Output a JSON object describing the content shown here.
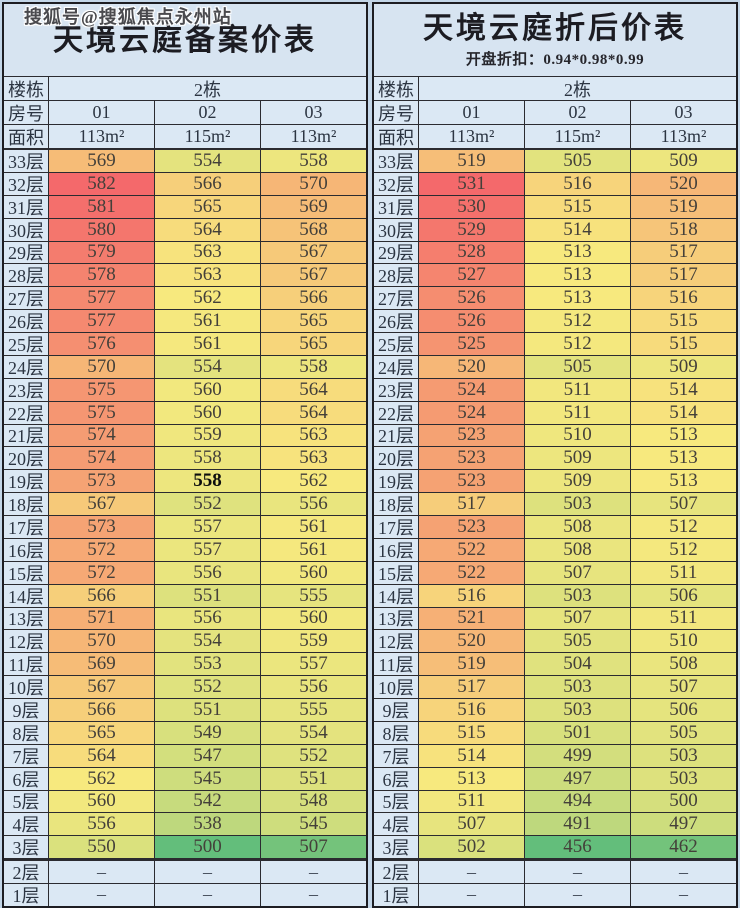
{
  "watermark": "搜狐号@搜狐焦点永州站",
  "heatmap_palette": {
    "low_green": "#63BE7B",
    "mid_yellow": "#F7E97E",
    "high_red": "#F4696B",
    "note": "3-color scale per table: green=min, yellow=median, red=max"
  },
  "chart_data": [
    {
      "type": "heatmap",
      "title": "天境云庭备案价表",
      "subtitle": "",
      "header": {
        "building_label": "楼栋",
        "building": "2栋",
        "room_label": "房号",
        "rooms": [
          "01",
          "02",
          "03"
        ],
        "area_label": "面积",
        "areas": [
          "113m²",
          "115m²",
          "113m²"
        ]
      },
      "floor_suffix": "层",
      "empty_marker": "–",
      "bold_cells": [
        {
          "floor": 19,
          "col": 1
        }
      ],
      "floors": [
        33,
        32,
        31,
        30,
        29,
        28,
        27,
        26,
        25,
        24,
        23,
        22,
        21,
        20,
        19,
        18,
        17,
        16,
        15,
        14,
        13,
        12,
        11,
        10,
        9,
        8,
        7,
        6,
        5,
        4,
        3,
        2,
        1
      ],
      "values": [
        [
          569,
          554,
          558
        ],
        [
          582,
          566,
          570
        ],
        [
          581,
          565,
          569
        ],
        [
          580,
          564,
          568
        ],
        [
          579,
          563,
          567
        ],
        [
          578,
          563,
          567
        ],
        [
          577,
          562,
          566
        ],
        [
          577,
          561,
          565
        ],
        [
          576,
          561,
          565
        ],
        [
          570,
          554,
          558
        ],
        [
          575,
          560,
          564
        ],
        [
          575,
          560,
          564
        ],
        [
          574,
          559,
          563
        ],
        [
          574,
          558,
          563
        ],
        [
          573,
          558,
          562
        ],
        [
          567,
          552,
          556
        ],
        [
          573,
          557,
          561
        ],
        [
          572,
          557,
          561
        ],
        [
          572,
          556,
          560
        ],
        [
          566,
          551,
          555
        ],
        [
          571,
          556,
          560
        ],
        [
          570,
          554,
          559
        ],
        [
          569,
          553,
          557
        ],
        [
          567,
          552,
          556
        ],
        [
          566,
          551,
          555
        ],
        [
          565,
          549,
          554
        ],
        [
          564,
          547,
          552
        ],
        [
          562,
          545,
          551
        ],
        [
          560,
          542,
          548
        ],
        [
          556,
          538,
          545
        ],
        [
          550,
          500,
          507
        ],
        [
          null,
          null,
          null
        ],
        [
          null,
          null,
          null
        ]
      ]
    },
    {
      "type": "heatmap",
      "title": "天境云庭折后价表",
      "subtitle": "开盘折扣：0.94*0.98*0.99",
      "header": {
        "building_label": "楼栋",
        "building": "2栋",
        "room_label": "房号",
        "rooms": [
          "01",
          "02",
          "03"
        ],
        "area_label": "面积",
        "areas": [
          "113m²",
          "115m²",
          "113m²"
        ]
      },
      "floor_suffix": "层",
      "empty_marker": "–",
      "bold_cells": [],
      "floors": [
        33,
        32,
        31,
        30,
        29,
        28,
        27,
        26,
        25,
        24,
        23,
        22,
        21,
        20,
        19,
        18,
        17,
        16,
        15,
        14,
        13,
        12,
        11,
        10,
        9,
        8,
        7,
        6,
        5,
        4,
        3,
        2,
        1
      ],
      "values": [
        [
          519,
          505,
          509
        ],
        [
          531,
          516,
          520
        ],
        [
          530,
          515,
          519
        ],
        [
          529,
          514,
          518
        ],
        [
          528,
          513,
          517
        ],
        [
          527,
          513,
          517
        ],
        [
          526,
          513,
          516
        ],
        [
          526,
          512,
          515
        ],
        [
          525,
          512,
          515
        ],
        [
          520,
          505,
          509
        ],
        [
          524,
          511,
          514
        ],
        [
          524,
          511,
          514
        ],
        [
          523,
          510,
          513
        ],
        [
          523,
          509,
          513
        ],
        [
          523,
          509,
          513
        ],
        [
          517,
          503,
          507
        ],
        [
          523,
          508,
          512
        ],
        [
          522,
          508,
          512
        ],
        [
          522,
          507,
          511
        ],
        [
          516,
          503,
          506
        ],
        [
          521,
          507,
          511
        ],
        [
          520,
          505,
          510
        ],
        [
          519,
          504,
          508
        ],
        [
          517,
          503,
          507
        ],
        [
          516,
          503,
          506
        ],
        [
          515,
          501,
          505
        ],
        [
          514,
          499,
          503
        ],
        [
          513,
          497,
          503
        ],
        [
          511,
          494,
          500
        ],
        [
          507,
          491,
          497
        ],
        [
          502,
          456,
          462
        ],
        [
          null,
          null,
          null
        ],
        [
          null,
          null,
          null
        ]
      ]
    }
  ]
}
